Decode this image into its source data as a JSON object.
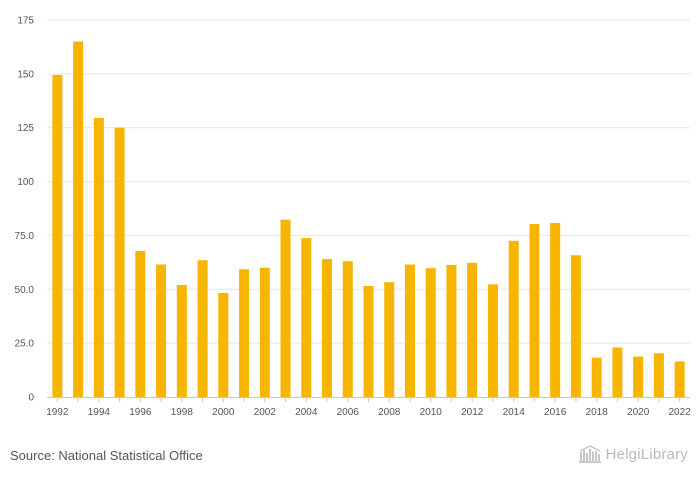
{
  "chart_data": {
    "type": "bar",
    "title": "",
    "xlabel": "",
    "ylabel": "",
    "ylim": [
      0,
      175
    ],
    "yticks": [
      "0",
      "25.0",
      "50.0",
      "75.0",
      "100",
      "125",
      "150",
      "175"
    ],
    "ytick_values": [
      0,
      25,
      50,
      75,
      100,
      125,
      150,
      175
    ],
    "grid": true,
    "bar_color": "#f7b500",
    "categories": [
      "1992",
      "1993",
      "1994",
      "1995",
      "1996",
      "1997",
      "1998",
      "1999",
      "2000",
      "2001",
      "2002",
      "2003",
      "2004",
      "2005",
      "2006",
      "2007",
      "2008",
      "2009",
      "2010",
      "2011",
      "2012",
      "2013",
      "2014",
      "2015",
      "2016",
      "2017",
      "2018",
      "2019",
      "2020",
      "2021",
      "2022"
    ],
    "xtick_labels": [
      "1992",
      "",
      "1994",
      "",
      "1996",
      "",
      "1998",
      "",
      "2000",
      "",
      "2002",
      "",
      "2004",
      "",
      "2006",
      "",
      "2008",
      "",
      "2010",
      "",
      "2012",
      "",
      "2014",
      "",
      "2016",
      "",
      "2018",
      "",
      "2020",
      "",
      "2022"
    ],
    "values": [
      149.5,
      165,
      129.5,
      125,
      67.8,
      61.5,
      52,
      63.5,
      48.3,
      59.3,
      60,
      82.3,
      73.8,
      64,
      63,
      51.5,
      53.3,
      61.5,
      59.8,
      61.3,
      62.3,
      52.3,
      72.5,
      80.3,
      80.8,
      65.8,
      18.3,
      23,
      18.8,
      20.3,
      16.5
    ]
  },
  "footer": {
    "source": "Source: National Statistical Office",
    "logo": "HelgiLibrary",
    "logo_icon": "library-building-icon"
  }
}
